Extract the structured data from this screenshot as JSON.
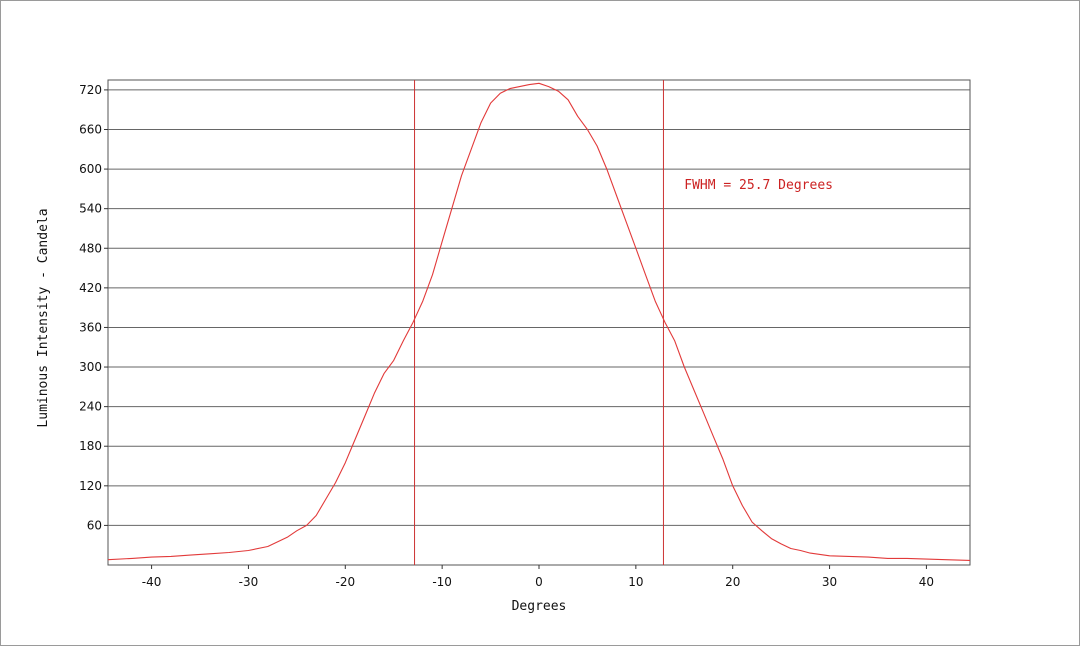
{
  "chart_data": {
    "type": "line",
    "title": "",
    "xlabel": "Degrees",
    "ylabel": "Luminous Intensity - Candela",
    "xlim": [
      -44.5,
      44.5
    ],
    "ylim": [
      0,
      735
    ],
    "xticks": [
      -40,
      -30,
      -20,
      -10,
      0,
      10,
      20,
      30,
      40
    ],
    "xtick_labels": [
      "-40",
      "-30",
      "-20",
      "-10",
      "0",
      "10",
      "20",
      "30",
      "40"
    ],
    "yticks": [
      60,
      120,
      180,
      240,
      300,
      360,
      420,
      480,
      540,
      600,
      660,
      720
    ],
    "ytick_labels": [
      "60",
      "120",
      "180",
      "240",
      "300",
      "360",
      "420",
      "480",
      "540",
      "600",
      "660",
      "720"
    ],
    "grid": "horizontal",
    "legend": "none",
    "colors": {
      "line": "#e23a3a",
      "marker": "#cc3333",
      "grid": "#666666",
      "annotation": "#cc2222"
    },
    "series": [
      {
        "x": [
          -44.5,
          -42,
          -40,
          -38,
          -36,
          -34,
          -32,
          -30,
          -28,
          -27,
          -26,
          -25,
          -24,
          -23,
          -22,
          -21,
          -20,
          -19,
          -18,
          -17,
          -16,
          -15,
          -14,
          -13,
          -12,
          -11,
          -10,
          -9,
          -8,
          -7,
          -6,
          -5,
          -4,
          -3,
          -2,
          -1,
          0,
          1,
          2,
          3,
          4,
          5,
          6,
          7,
          8,
          9,
          10,
          11,
          12,
          13,
          14,
          15,
          16,
          17,
          18,
          19,
          20,
          21,
          22,
          23,
          24,
          25,
          26,
          27,
          28,
          30,
          32,
          34,
          36,
          38,
          40,
          42,
          44.5
        ],
        "y": [
          8,
          10,
          12,
          13,
          15,
          17,
          19,
          22,
          28,
          35,
          42,
          52,
          60,
          75,
          100,
          125,
          155,
          190,
          225,
          260,
          290,
          310,
          340,
          368,
          400,
          440,
          490,
          540,
          590,
          630,
          670,
          700,
          715,
          722,
          725,
          728,
          730,
          725,
          718,
          705,
          680,
          660,
          635,
          600,
          560,
          520,
          480,
          440,
          400,
          368,
          340,
          300,
          265,
          230,
          195,
          160,
          120,
          90,
          65,
          52,
          40,
          32,
          25,
          22,
          18,
          14,
          13,
          12,
          10,
          10,
          9,
          8,
          7
        ]
      }
    ],
    "markers": [
      {
        "x": -12.85
      },
      {
        "x": 12.85
      }
    ],
    "annotations": [
      {
        "text": "FWHM = 25.7 Degrees",
        "x": 15,
        "y": 570
      }
    ]
  }
}
